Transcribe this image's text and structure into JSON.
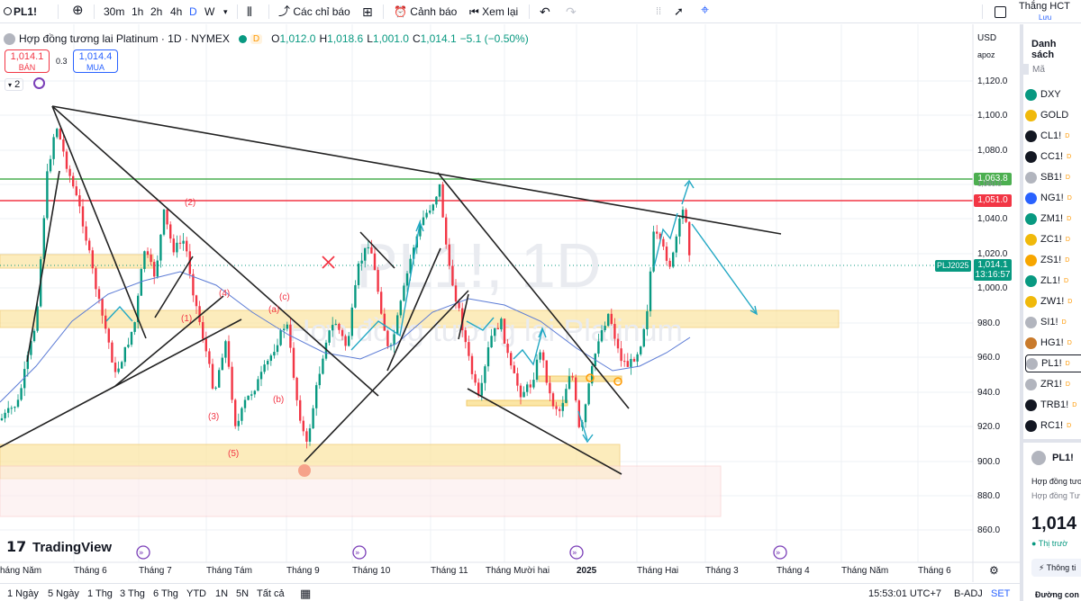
{
  "toolbar": {
    "symbol": "PL1!",
    "intervals": [
      "30m",
      "1h",
      "2h",
      "4h",
      "D",
      "W"
    ],
    "selected_interval": "D",
    "indicators": "Các chỉ báo",
    "alerts": "Cảnh báo",
    "replay": "Xem lại",
    "user": "Thắng HCT",
    "user_sub": "Lưu"
  },
  "legend": {
    "title": "Hợp đồng tương lai Platinum · 1D · NYMEX",
    "o_k": "O",
    "o": "1,012.0",
    "h_k": "H",
    "h": "1,018.6",
    "l_k": "L",
    "l": "1,001.0",
    "c_k": "C",
    "c": "1,014.1",
    "change": "−5.1 (−0.50%)",
    "indicator_count": "2",
    "sell_price": "1,014.1",
    "sell_label": "BÁN",
    "spread": "0.3",
    "buy_price": "1,014.4",
    "buy_label": "MUA"
  },
  "axis": {
    "currency": "USD",
    "scale_mode": "apoz",
    "price_ticks": [
      "1,120.0",
      "1,100.0",
      "1,080.0",
      "1,040.0",
      "1,020.0",
      "1,000.0",
      "980.0",
      "960.0",
      "940.0",
      "920.0",
      "900.0",
      "880.0",
      "860.0"
    ],
    "green_line": "1,063.8",
    "red_line": "1,051.0",
    "contract_tag": "PLJ2025",
    "last_price": "1,014.1",
    "countdown": "13:16:57",
    "hidden_tag": "1,060.0"
  },
  "time_axis": [
    "háng Năm",
    "Tháng 6",
    "Tháng 7",
    "Tháng Tám",
    "Tháng 9",
    "Tháng 10",
    "Tháng 11",
    "Tháng Mười hai",
    "2025",
    "Tháng Hai",
    "Tháng 3",
    "Tháng 4",
    "Tháng Năm",
    "Tháng 6"
  ],
  "annotations": {
    "wave_labels": [
      "(2)",
      "(4)",
      "(c)",
      "(a)",
      "(1)",
      "(b)",
      "(3)",
      "(5)"
    ],
    "watermark_symbol": "PL1!, 1D",
    "watermark_name": "Hợp đồng tương lai Platinum",
    "logo": "TradingView"
  },
  "bottom": {
    "ranges": [
      "1 Ngày",
      "5 Ngày",
      "1 Thg",
      "3 Thg",
      "6 Thg",
      "YTD",
      "1N",
      "5N",
      "Tất cả"
    ],
    "clock": "15:53:01 UTC+7",
    "adj": "B-ADJ",
    "set": "SET"
  },
  "watchlist": {
    "title": "Danh sách",
    "col": "Mã",
    "items": [
      {
        "sym": "DXY",
        "color": "#089981",
        "d": ""
      },
      {
        "sym": "GOLD",
        "color": "#f0b90b",
        "d": ""
      },
      {
        "sym": "CL1!",
        "color": "#131722",
        "d": "D"
      },
      {
        "sym": "CC1!",
        "color": "#131722",
        "d": "D"
      },
      {
        "sym": "SB1!",
        "color": "#b2b5be",
        "d": "D"
      },
      {
        "sym": "NG1!",
        "color": "#2962ff",
        "d": "D"
      },
      {
        "sym": "ZM1!",
        "color": "#089981",
        "d": "D"
      },
      {
        "sym": "ZC1!",
        "color": "#f0b90b",
        "d": "D"
      },
      {
        "sym": "ZS1!",
        "color": "#f7a600",
        "d": "D"
      },
      {
        "sym": "ZL1!",
        "color": "#089981",
        "d": "D"
      },
      {
        "sym": "ZW1!",
        "color": "#f0b90b",
        "d": "D"
      },
      {
        "sym": "SI1!",
        "color": "#b2b5be",
        "d": "D"
      },
      {
        "sym": "HG1!",
        "color": "#c97a2b",
        "d": "D"
      },
      {
        "sym": "PL1!",
        "color": "#b2b5be",
        "d": "D"
      },
      {
        "sym": "ZR1!",
        "color": "#b2b5be",
        "d": "D"
      },
      {
        "sym": "TRB1!",
        "color": "#131722",
        "d": "D"
      },
      {
        "sym": "RC1!",
        "color": "#131722",
        "d": "D"
      }
    ],
    "detail_symbol": "PL1!",
    "detail_name": "Hợp đồng tươ",
    "detail_sub": "Hợp đồng Tư",
    "detail_price": "1,014",
    "detail_status": "Thị trườ",
    "detail_button": "Thông ti",
    "detail_footer": "Đường con"
  },
  "colors": {
    "up": "#089981",
    "down": "#f23645",
    "accent": "#2962ff",
    "ma": "#5b7bd5",
    "zone": "#fbe6a6",
    "arrow": "#22a8c4"
  }
}
